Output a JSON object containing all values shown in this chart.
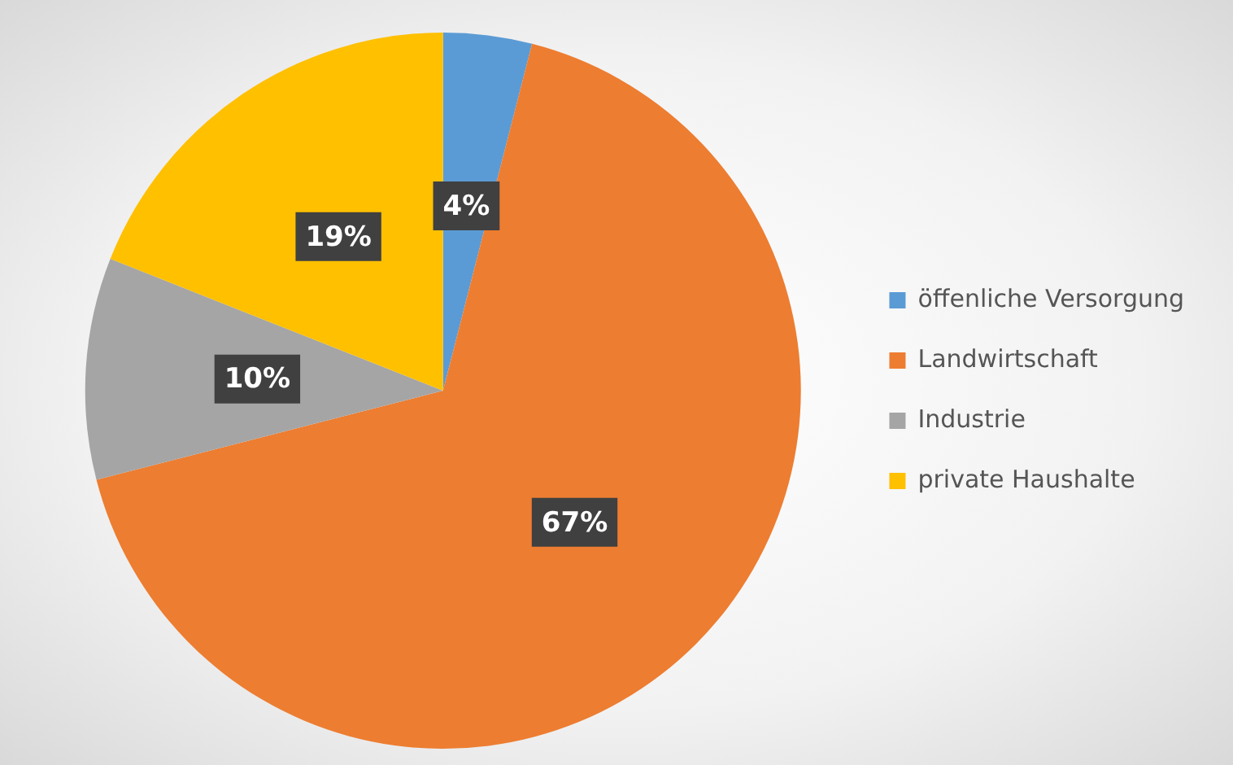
{
  "chart_data": {
    "type": "pie",
    "categories": [
      "öffenliche Versorgung",
      "Landwirtschaft",
      "Industrie",
      "private Haushalte"
    ],
    "values": [
      4,
      67,
      10,
      19
    ],
    "colors": [
      "#5b9bd5",
      "#ed7d31",
      "#a5a5a5",
      "#ffc000"
    ],
    "value_labels": [
      "4%",
      "67%",
      "10%",
      "19%"
    ],
    "legend": "right"
  }
}
